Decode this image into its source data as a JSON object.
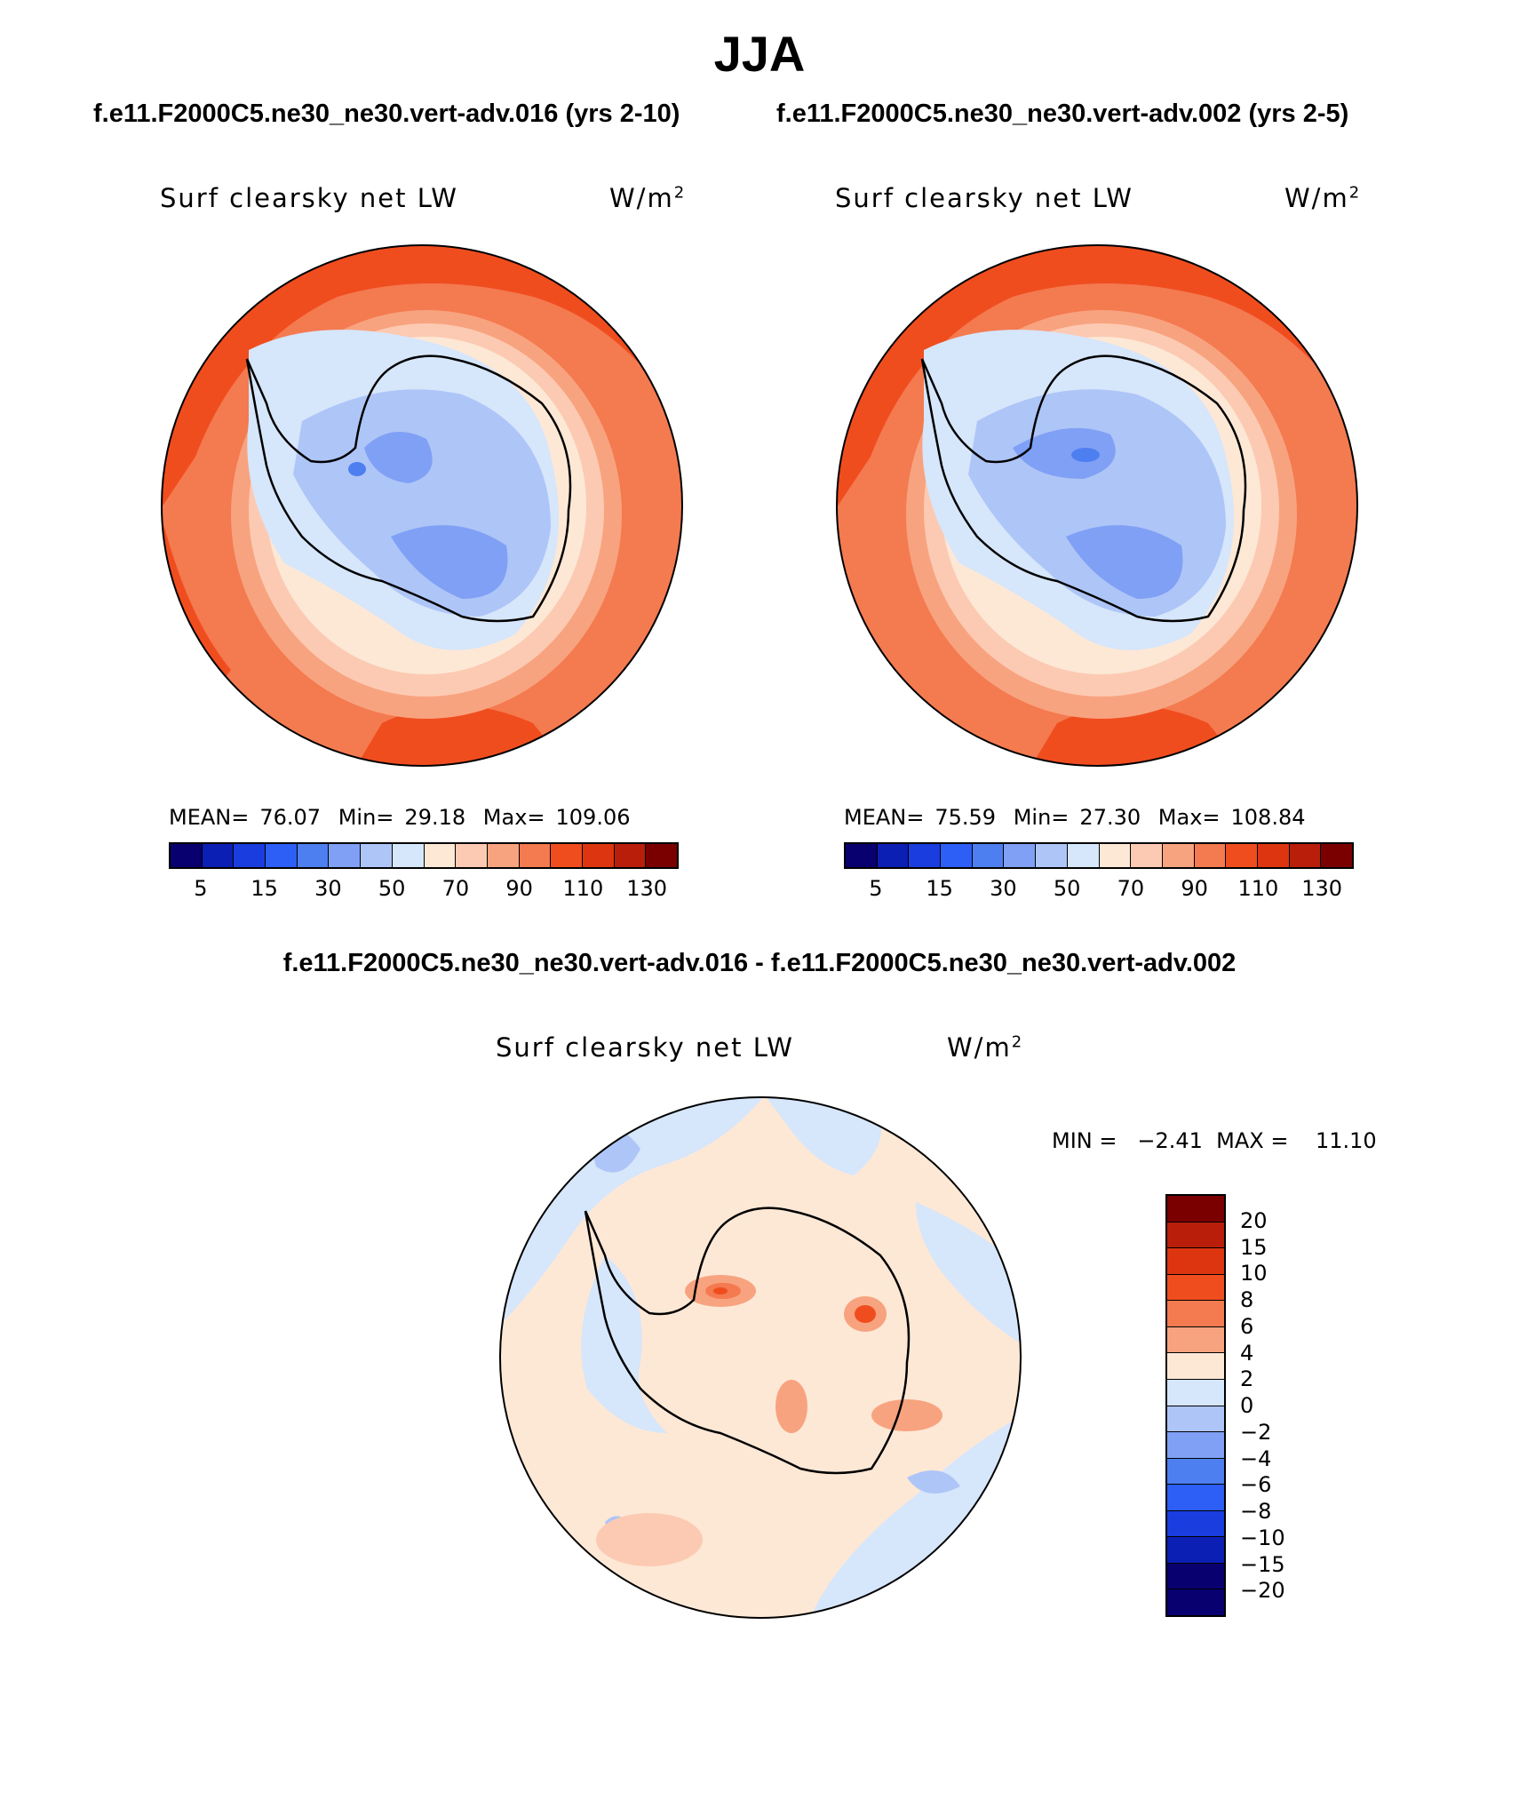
{
  "title": "JJA",
  "panels": [
    {
      "case": "f.e11.F2000C5.ne30_ne30.vert-adv.016 (yrs 2-10)",
      "variable": "Surf clearsky net LW",
      "units_base": "W/m",
      "units_exp": "2",
      "mean_label": "MEAN=",
      "mean": "76.07",
      "min_label": "Min=",
      "min": "29.18",
      "max_label": "Max=",
      "max": "109.06"
    },
    {
      "case": "f.e11.F2000C5.ne30_ne30.vert-adv.002 (yrs 2-5)",
      "variable": "Surf clearsky net LW",
      "units_base": "W/m",
      "units_exp": "2",
      "mean_label": "MEAN=",
      "mean": "75.59",
      "min_label": "Min=",
      "min": "27.30",
      "max_label": "Max=",
      "max": "108.84"
    }
  ],
  "diff_panel": {
    "case": "f.e11.F2000C5.ne30_ne30.vert-adv.016 - f.e11.F2000C5.ne30_ne30.vert-adv.002",
    "variable": "Surf clearsky net LW",
    "units_base": "W/m",
    "units_exp": "2",
    "minmax": "MIN =   −2.41  MAX =    11.10"
  },
  "colorbar": {
    "colors": [
      "#08006e",
      "#0b1fb4",
      "#1a3de0",
      "#2d5ef5",
      "#4d7ff0",
      "#7fa0f5",
      "#aec5f7",
      "#d6e6fb",
      "#fde8d6",
      "#fccab2",
      "#f8a37f",
      "#f47a50",
      "#f04d1f",
      "#dd3510",
      "#b81e0a",
      "#7a0000"
    ],
    "tick_labels": [
      "5",
      "15",
      "30",
      "50",
      "70",
      "90",
      "110",
      "130"
    ]
  },
  "diff_colorbar": {
    "colors": [
      "#7a0000",
      "#b81e0a",
      "#dd3510",
      "#f04d1f",
      "#f47a50",
      "#f8a37f",
      "#fde8d6",
      "#d6e6fb",
      "#aec5f7",
      "#7fa0f5",
      "#4d7ff0",
      "#2d5ef5",
      "#1a3de0",
      "#0b1fb4",
      "#08006e",
      "#08006e"
    ],
    "tick_labels": [
      "20",
      "15",
      "10",
      "8",
      "6",
      "4",
      "2",
      "0",
      "−2",
      "−4",
      "−6",
      "−8",
      "−10",
      "−15",
      "−20"
    ]
  }
}
